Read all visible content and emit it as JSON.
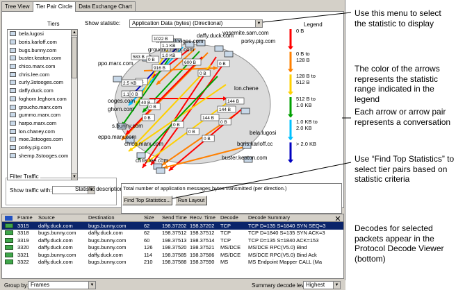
{
  "tabs": [
    "Tree View",
    "Tier Pair Circle",
    "Data Exchange Chart"
  ],
  "active_tab": 1,
  "tiers_header": "Tiers",
  "tiers": [
    "bela.lugosi",
    "boris.karloff.com",
    "bugs.bunny.com",
    "buster.keaton.com",
    "chico.marx.com",
    "chris.lee.com",
    "curly.3stooges.com",
    "daffy.duck.com",
    "foghorn.leghorn.com",
    "groucho.marx.com",
    "gummo.marx.com",
    "harpo.marx.com",
    "lon.chaney.com",
    "moe.3stooges.com",
    "porky.pig.com",
    "shemp.3stooges.com"
  ],
  "show_statistic_label": "Show statistic:",
  "show_statistic_value": "Application Data (bytes) (Directional)",
  "legend_header": "Legend",
  "legend": {
    "items": [
      {
        "label": "0 B",
        "color": "#ff0000"
      },
      {
        "label": "0 B to 128 B",
        "color": "#ff8000"
      },
      {
        "label": "128 B to 512 B",
        "color": "#ffd000"
      },
      {
        "label": "512 B to 1.0 KB",
        "color": "#00a000"
      },
      {
        "label": "1.0 KB to 2.0 KB",
        "color": "#00c0ff"
      },
      {
        "label": "> 2.0 KB",
        "color": "#0000c0"
      }
    ]
  },
  "diagram": {
    "nodes": [
      "daffy.duck.com",
      "yosemite.sam.com",
      "porky.pig.com",
      "moe.3stooges.com",
      "groucho.marx.com",
      "ppo.marx.com",
      "lon.chene",
      "ooges.com",
      "ghorn.com",
      "bela.lugosi",
      "s.bunny.com",
      "eppo.marx.com",
      "boris.karloff.cc",
      "chico.marx.com",
      "buster.keaton.com",
      "chris.lee.com"
    ],
    "edge_labels": [
      "1022 B",
      "1.1 KB",
      "1.0 KB",
      "583 B",
      "0 B",
      "600 B",
      "0 B",
      "0 B",
      "916 B",
      "0 B",
      "2.5 KB",
      "1.1 KB",
      "0 B",
      "40 B",
      "0 B",
      "144 B",
      "144 B",
      "0 B",
      "144 B",
      "0 B",
      "0 B",
      "0 B",
      "0 B"
    ]
  },
  "filter": {
    "title": "Filter Traffic",
    "show_traffic_label": "Show traffic with:",
    "value": ""
  },
  "statistic_description_label": "Statistic description:",
  "statistic_description": "Total number of application messages bytes transmitted (per direction.)",
  "buttons": {
    "find_top": "Find Top Statistics...",
    "run_layout": "Run Layout"
  },
  "decode_columns": [
    "Frame",
    "Source",
    "Destination",
    "Size",
    "Send Time",
    "Recv. Time",
    "Decode",
    "Decode Summary"
  ],
  "decode_rows": [
    {
      "frame": "3315",
      "src": "daffy.duck.com",
      "dst": "bugs.bunny.com",
      "size": "62",
      "send": "198.37202",
      "recv": "198.37202",
      "decode": "TCP",
      "summary": "TCP D=135 S=1840 SYN SEQ=3",
      "selected": true
    },
    {
      "frame": "3318",
      "src": "bugs.bunny.com",
      "dst": "daffy.duck.com",
      "size": "62",
      "send": "198.37512",
      "recv": "198.37512",
      "decode": "TCP",
      "summary": "TCP D=1840 S=135 SYN ACK=3",
      "selected": false
    },
    {
      "frame": "3319",
      "src": "daffy.duck.com",
      "dst": "bugs.bunny.com",
      "size": "60",
      "send": "198.37513",
      "recv": "198.37514",
      "decode": "TCP",
      "summary": "TCP D=135 S=1840    ACK=153",
      "selected": false
    },
    {
      "frame": "3320",
      "src": "daffy.duck.com",
      "dst": "bugs.bunny.com",
      "size": "126",
      "send": "198.37520",
      "recv": "198.37521",
      "decode": "MS/DCE",
      "summary": "MS/DCE RPC(V5.0) Bind",
      "selected": false
    },
    {
      "frame": "3321",
      "src": "bugs.bunny.com",
      "dst": "daffy.duck.com",
      "size": "114",
      "send": "198.37585",
      "recv": "198.37586",
      "decode": "MS/DCE",
      "summary": "MS/DCE RPC(V5.0) Bind Ack",
      "selected": false
    },
    {
      "frame": "3322",
      "src": "daffy.duck.com",
      "dst": "bugs.bunny.com",
      "size": "210",
      "send": "198.37588",
      "recv": "198.37590",
      "decode": "MS",
      "summary": "MS Endpoint Mapper CALL (Ma",
      "selected": false
    }
  ],
  "group_by_label": "Group by:",
  "group_by_value": "Frames",
  "summary_level_label": "Summary decode level",
  "summary_level_value": "Highest",
  "annotations": [
    "Use this menu to select the statistic to display",
    "The color of the arrows represents the statistic range indicated in the legend",
    "Each arrow or arrow pair represents a conversation",
    "Use “Find Top Statistics” to select tier pairs based on statistic criteria",
    "Decodes for selected packets appear in the Protocol Decode Viewer (bottom)"
  ]
}
